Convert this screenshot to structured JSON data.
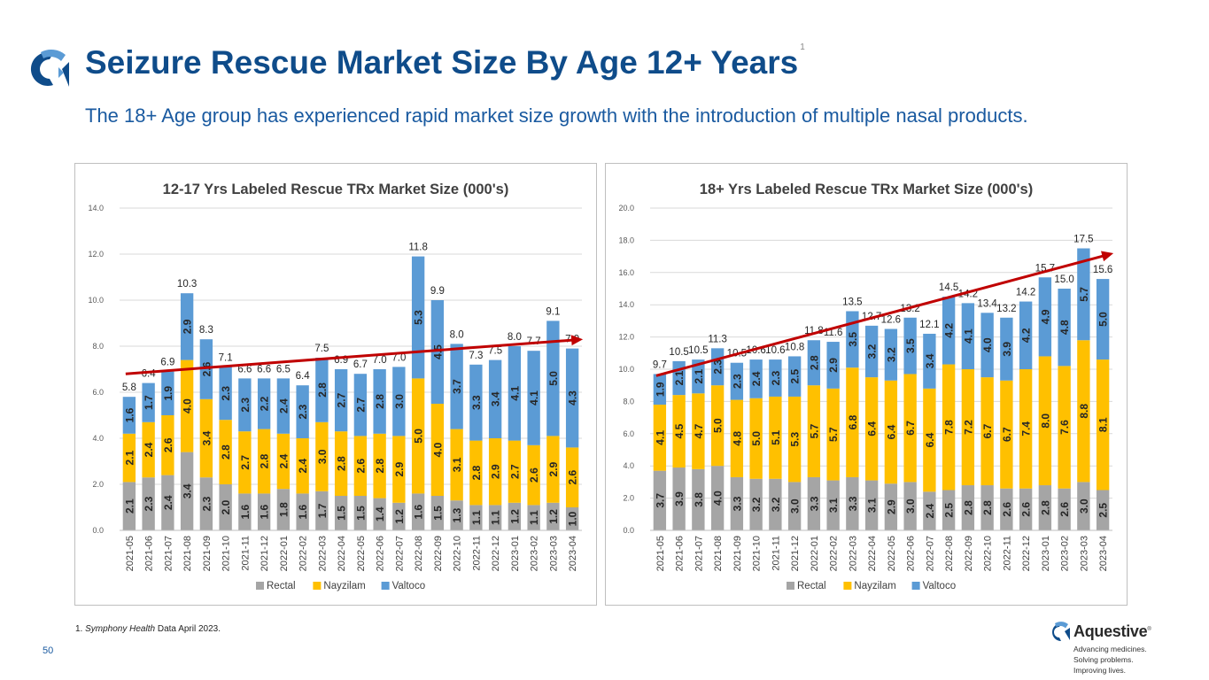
{
  "header": {
    "title": "Seizure Rescue Market Size By Age 12+ Years",
    "title_superscript": "1",
    "subtitle": "The 18+ Age group has experienced rapid market size growth with the introduction of multiple nasal products."
  },
  "colors": {
    "title": "#0f4c8a",
    "rectal": "#a5a5a5",
    "nayzilam": "#ffc000",
    "valtoco": "#5b9bd5",
    "trend": "#c00000"
  },
  "chart_data": [
    {
      "type": "bar",
      "stacked": true,
      "title": "12-17 Yrs Labeled Rescue  TRx Market Size (000's)",
      "xlabel": "",
      "ylabel": "",
      "ylim": [
        0,
        14
      ],
      "y_ticks": [
        "0.0",
        "2.0",
        "4.0",
        "6.0",
        "8.0",
        "10.0",
        "12.0",
        "14.0"
      ],
      "categories": [
        "2021-05",
        "2021-06",
        "2021-07",
        "2021-08",
        "2021-09",
        "2021-10",
        "2021-11",
        "2021-12",
        "2022-01",
        "2022-02",
        "2022-03",
        "2022-04",
        "2022-05",
        "2022-06",
        "2022-07",
        "2022-08",
        "2022-09",
        "2022-10",
        "2022-11",
        "2022-12",
        "2023-01",
        "2023-02",
        "2023-03",
        "2023-04"
      ],
      "series": [
        {
          "name": "Rectal",
          "values": [
            "2.1",
            "2.3",
            "2.4",
            "3.4",
            "2.3",
            "2.0",
            "1.6",
            "1.6",
            "1.8",
            "1.6",
            "1.7",
            "1.5",
            "1.5",
            "1.4",
            "1.2",
            "1.6",
            "1.5",
            "1.3",
            "1.1",
            "1.1",
            "1.2",
            "1.1",
            "1.2",
            "1.0"
          ]
        },
        {
          "name": "Nayzilam",
          "values": [
            "2.1",
            "2.4",
            "2.6",
            "4.0",
            "3.4",
            "2.8",
            "2.7",
            "2.8",
            "2.4",
            "2.4",
            "3.0",
            "2.8",
            "2.6",
            "2.8",
            "2.9",
            "5.0",
            "4.0",
            "3.1",
            "2.8",
            "2.9",
            "2.7",
            "2.6",
            "2.9",
            "2.6"
          ]
        },
        {
          "name": "Valtoco",
          "values": [
            "1.6",
            "1.7",
            "1.9",
            "2.9",
            "2.6",
            "2.3",
            "2.3",
            "2.2",
            "2.4",
            "2.3",
            "2.8",
            "2.7",
            "2.7",
            "2.8",
            "3.0",
            "5.3",
            "4.5",
            "3.7",
            "3.3",
            "3.4",
            "4.1",
            "4.1",
            "5.0",
            "4.3"
          ]
        }
      ],
      "totals": [
        "5.8",
        "6.4",
        "6.9",
        "10.3",
        "8.3",
        "7.1",
        "6.6",
        "6.6",
        "6.5",
        "6.4",
        "7.5",
        "6.9",
        "6.7",
        "7.0",
        "7.0",
        "11.8",
        "9.9",
        "8.0",
        "7.3",
        "7.5",
        "8.0",
        "7.7",
        "9.1",
        "7.9"
      ],
      "trend": {
        "start": 6.8,
        "end": 8.3
      },
      "legend": [
        "Rectal",
        "Nayzilam",
        "Valtoco"
      ],
      "legend_position": "bottom",
      "grid": true
    },
    {
      "type": "bar",
      "stacked": true,
      "title": "18+ Yrs Labeled Rescue  TRx Market Size (000's)",
      "xlabel": "",
      "ylabel": "",
      "ylim": [
        0,
        20
      ],
      "y_ticks": [
        "0.0",
        "2.0",
        "4.0",
        "6.0",
        "8.0",
        "10.0",
        "12.0",
        "14.0",
        "16.0",
        "18.0",
        "20.0"
      ],
      "categories": [
        "2021-05",
        "2021-06",
        "2021-07",
        "2021-08",
        "2021-09",
        "2021-10",
        "2021-11",
        "2021-12",
        "2022-01",
        "2022-02",
        "2022-03",
        "2022-04",
        "2022-05",
        "2022-06",
        "2022-07",
        "2022-08",
        "2022-09",
        "2022-10",
        "2022-11",
        "2022-12",
        "2023-01",
        "2023-02",
        "2023-03",
        "2023-04"
      ],
      "series": [
        {
          "name": "Rectal",
          "values": [
            "3.7",
            "3.9",
            "3.8",
            "4.0",
            "3.3",
            "3.2",
            "3.2",
            "3.0",
            "3.3",
            "3.1",
            "3.3",
            "3.1",
            "2.9",
            "3.0",
            "2.4",
            "2.5",
            "2.8",
            "2.8",
            "2.6",
            "2.6",
            "2.8",
            "2.6",
            "3.0",
            "2.5"
          ]
        },
        {
          "name": "Nayzilam",
          "values": [
            "4.1",
            "4.5",
            "4.7",
            "5.0",
            "4.8",
            "5.0",
            "5.1",
            "5.3",
            "5.7",
            "5.7",
            "6.8",
            "6.4",
            "6.4",
            "6.7",
            "6.4",
            "7.8",
            "7.2",
            "6.7",
            "6.7",
            "7.4",
            "8.0",
            "7.6",
            "8.8",
            "8.1"
          ]
        },
        {
          "name": "Valtoco",
          "values": [
            "1.9",
            "2.1",
            "2.1",
            "2.3",
            "2.3",
            "2.4",
            "2.3",
            "2.5",
            "2.8",
            "2.9",
            "3.5",
            "3.2",
            "3.2",
            "3.5",
            "3.4",
            "4.2",
            "4.1",
            "4.0",
            "3.9",
            "4.2",
            "4.9",
            "4.8",
            "5.7",
            "5.0"
          ]
        }
      ],
      "totals": [
        "9.7",
        "10.5",
        "10.5",
        "11.3",
        "10.5",
        "10.6",
        "10.6",
        "10.8",
        "11.8",
        "11.6",
        "13.5",
        "12.7",
        "12.6",
        "13.2",
        "12.1",
        "14.5",
        "14.2",
        "13.4",
        "13.2",
        "14.2",
        "15.7",
        "15.0",
        "17.5",
        "15.6"
      ],
      "trend": {
        "start": 9.6,
        "end": 17.2
      },
      "legend": [
        "Rectal",
        "Nayzilam",
        "Valtoco"
      ],
      "legend_position": "bottom",
      "grid": true
    }
  ],
  "footnote": {
    "number": "1.",
    "source": "Symphony Health",
    "text": " Data April 2023."
  },
  "page_number": "50",
  "brand": {
    "name": "Aquestive",
    "mark": "®",
    "tagline": [
      "Advancing medicines.",
      "Solving problems.",
      "Improving lives."
    ]
  }
}
